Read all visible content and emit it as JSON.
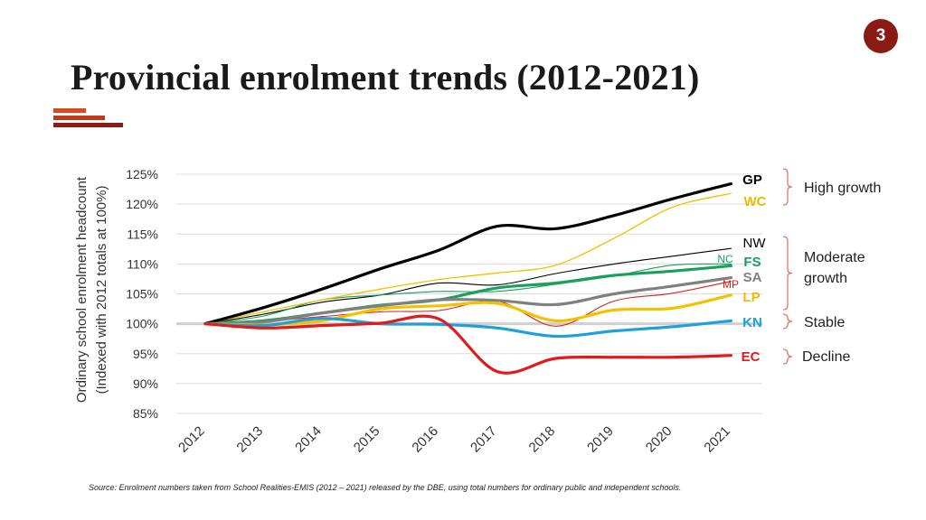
{
  "slide": {
    "page_number": "3",
    "title": "Provincial enrolment trends (2012-2021)",
    "source": "Source: Enrolment numbers taken from School Realities-EMIS (2012 – 2021) released by the DBE, using total numbers for ordinary public and independent schools.",
    "accent_color": "#c0392b"
  },
  "chart_data": {
    "type": "line",
    "title": "",
    "xlabel": "",
    "ylabel": "Ordinary school enrolment headcount (Indexed with 2012 totals at 100%)",
    "ylabel_lines": [
      "Ordinary school enrolment headcount",
      "(Indexed with 2012 totals at 100%)"
    ],
    "x": [
      "2012",
      "2013",
      "2014",
      "2015",
      "2016",
      "2017",
      "2018",
      "2019",
      "2020",
      "2021"
    ],
    "y_ticks": [
      "85%",
      "90%",
      "95%",
      "100%",
      "105%",
      "110%",
      "115%",
      "120%",
      "125%"
    ],
    "ylim": [
      85,
      125
    ],
    "grid": true,
    "baseline": 100,
    "series": [
      {
        "name": "GP",
        "color": "#000000",
        "width": 3.2,
        "values": [
          100,
          102.7,
          105.8,
          109.2,
          112.3,
          116.3,
          115.9,
          118.1,
          120.9,
          123.4
        ]
      },
      {
        "name": "WC",
        "color": "#f2c200",
        "width": 1.3,
        "values": [
          100,
          102.0,
          104.0,
          105.8,
          107.4,
          108.5,
          109.8,
          114.3,
          119.5,
          121.8
        ]
      },
      {
        "name": "NW",
        "color": "#000000",
        "width": 1.1,
        "values": [
          100,
          101.6,
          103.6,
          104.8,
          106.8,
          106.5,
          108.4,
          110.0,
          111.3,
          112.6
        ]
      },
      {
        "name": "NC",
        "color": "#1aa05a",
        "width": 1.1,
        "values": [
          100,
          101.3,
          104.0,
          104.8,
          105.4,
          105.4,
          106.6,
          108.0,
          109.8,
          110.0
        ]
      },
      {
        "name": "FS",
        "color": "#1aa05a",
        "width": 3.2,
        "values": [
          100,
          100.5,
          101.8,
          103.1,
          104.0,
          106.0,
          106.8,
          108.1,
          108.8,
          109.7
        ]
      },
      {
        "name": "SA",
        "color": "#808080",
        "width": 3.2,
        "values": [
          100,
          100.3,
          101.8,
          103.0,
          104.0,
          103.9,
          103.2,
          105.0,
          106.3,
          107.7
        ]
      },
      {
        "name": "MP",
        "color": "#e02020",
        "width": 1.1,
        "values": [
          100,
          100.4,
          101.2,
          102.0,
          102.2,
          103.8,
          99.6,
          103.8,
          105.1,
          107.1
        ]
      },
      {
        "name": "LP",
        "color": "#f2c200",
        "width": 3.2,
        "values": [
          100,
          99.8,
          100.5,
          102.5,
          103.0,
          103.4,
          100.5,
          102.3,
          102.6,
          104.8
        ]
      },
      {
        "name": "KN",
        "color": "#1ea0dc",
        "width": 3.2,
        "values": [
          100,
          99.7,
          100.9,
          100.0,
          99.9,
          99.3,
          97.9,
          98.8,
          99.5,
          100.5
        ]
      },
      {
        "name": "EC",
        "color": "#e01b1b",
        "width": 3.2,
        "values": [
          100,
          99.3,
          99.7,
          100.1,
          100.8,
          92.0,
          94.2,
          94.4,
          94.4,
          94.7
        ]
      }
    ],
    "series_labels": [
      {
        "text": "GP",
        "color": "#000000"
      },
      {
        "text": "WC",
        "color": "#f2b800"
      },
      {
        "text": "NW",
        "color": "#000000"
      },
      {
        "text": "NC",
        "color": "#1aa05a"
      },
      {
        "text": "FS",
        "color": "#1aa05a"
      },
      {
        "text": "SA",
        "color": "#808080"
      },
      {
        "text": "MP",
        "color": "#e02020"
      },
      {
        "text": "LP",
        "color": "#f2b800"
      },
      {
        "text": "KN",
        "color": "#1ea0dc"
      },
      {
        "text": "EC",
        "color": "#e01b1b"
      }
    ],
    "groups": [
      {
        "label": [
          "High growth"
        ]
      },
      {
        "label": [
          "Moderate",
          "growth"
        ]
      },
      {
        "label": [
          "Stable"
        ]
      },
      {
        "label": [
          "Decline"
        ]
      }
    ],
    "group_brace_color": "#e07a6a"
  }
}
